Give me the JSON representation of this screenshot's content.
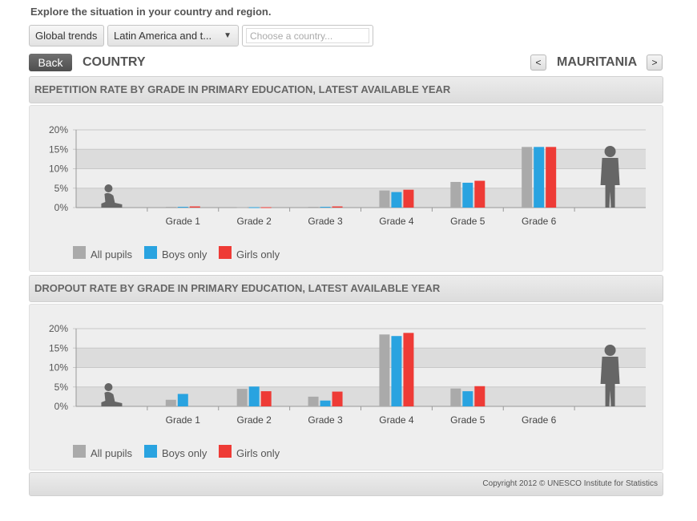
{
  "intro": "Explore the situation in your country and region.",
  "controls": {
    "global_trends": "Global trends",
    "region_selected": "Latin America and t...",
    "country_placeholder": "Choose a country..."
  },
  "nav": {
    "back": "Back",
    "section": "COUNTRY",
    "prev": "<",
    "next": ">",
    "country_name": "MAURITANIA"
  },
  "colors": {
    "all": "#aaaaaa",
    "boys": "#29a3e0",
    "girls": "#ee3b36",
    "silhouette": "#666666"
  },
  "legend": [
    "All pupils",
    "Boys only",
    "Girls only"
  ],
  "footer": "Copyright 2012 © UNESCO Institute for Statistics",
  "chart_data": [
    {
      "type": "bar",
      "title": "REPETITION RATE BY GRADE IN PRIMARY EDUCATION, LATEST AVAILABLE YEAR",
      "categories": [
        "Grade 1",
        "Grade 2",
        "Grade 3",
        "Grade 4",
        "Grade 5",
        "Grade 6"
      ],
      "ylim": [
        0,
        20
      ],
      "yticks": [
        "0%",
        "5%",
        "10%",
        "15%",
        "20%"
      ],
      "grid": true,
      "legend_position": "bottom-left",
      "series": [
        {
          "name": "All pupils",
          "values": [
            0.2,
            0.1,
            0.2,
            4.4,
            6.6,
            15.6
          ]
        },
        {
          "name": "Boys only",
          "values": [
            0.2,
            0.1,
            0.2,
            4.0,
            6.4,
            15.6
          ]
        },
        {
          "name": "Girls only",
          "values": [
            0.3,
            0.1,
            0.3,
            4.6,
            6.9,
            15.6
          ]
        }
      ]
    },
    {
      "type": "bar",
      "title": "DROPOUT RATE BY GRADE IN PRIMARY EDUCATION, LATEST AVAILABLE YEAR",
      "categories": [
        "Grade 1",
        "Grade 2",
        "Grade 3",
        "Grade 4",
        "Grade 5",
        "Grade 6"
      ],
      "ylim": [
        0,
        20
      ],
      "yticks": [
        "0%",
        "5%",
        "10%",
        "15%",
        "20%"
      ],
      "grid": true,
      "legend_position": "bottom-left",
      "series": [
        {
          "name": "All pupils",
          "values": [
            1.7,
            4.5,
            2.5,
            18.5,
            4.6,
            null
          ]
        },
        {
          "name": "Boys only",
          "values": [
            3.2,
            5.1,
            1.5,
            18.1,
            3.9,
            null
          ]
        },
        {
          "name": "Girls only",
          "values": [
            null,
            3.9,
            3.8,
            18.9,
            5.2,
            null
          ]
        }
      ]
    }
  ]
}
